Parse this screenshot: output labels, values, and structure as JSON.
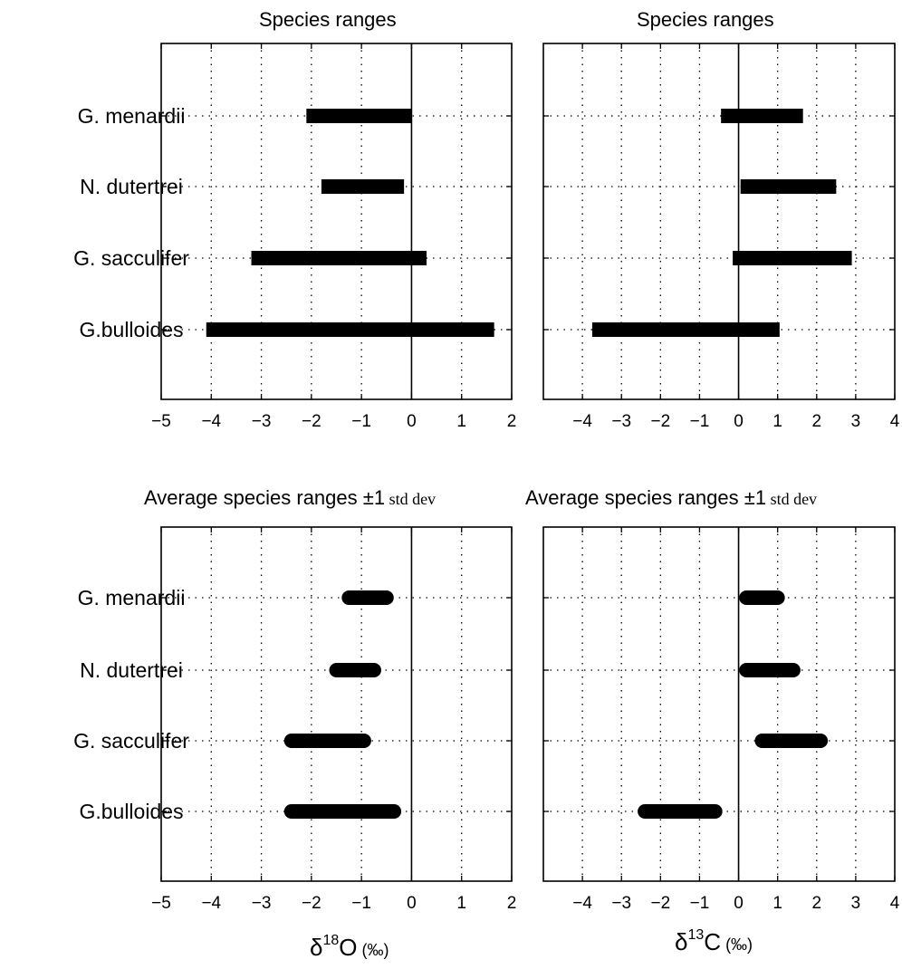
{
  "chart_data": [
    {
      "type": "bar",
      "title": "Species ranges",
      "categories": [
        "G. menardii",
        "N. dutertrei",
        "G. sacculifer",
        "G.bulloides"
      ],
      "ranges": [
        [
          -2.1,
          0.0
        ],
        [
          -1.8,
          -0.15
        ],
        [
          -3.2,
          0.3
        ],
        [
          -4.1,
          1.65
        ]
      ],
      "xlim": [
        -5,
        2
      ],
      "xticks": [
        -5,
        -4,
        -3,
        -2,
        -1,
        0,
        1,
        2
      ],
      "xticklabels": [
        "−5",
        "−4",
        "−3",
        "−2",
        "−1",
        "0",
        "1",
        "2"
      ],
      "grid": "dotted",
      "bar_style": "square"
    },
    {
      "type": "bar",
      "title": "Species ranges",
      "categories": [
        "G. menardii",
        "N. dutertrei",
        "G. sacculifer",
        "G.bulloides"
      ],
      "ranges": [
        [
          -0.45,
          1.65
        ],
        [
          0.05,
          2.5
        ],
        [
          -0.15,
          2.9
        ],
        [
          -3.75,
          1.05
        ]
      ],
      "xlim": [
        -5,
        4
      ],
      "xticks": [
        -4,
        -3,
        -2,
        -1,
        0,
        1,
        2,
        3,
        4
      ],
      "xticklabels": [
        "−4",
        "−3",
        "−2",
        "−1",
        "0",
        "1",
        "2",
        "3",
        "4"
      ],
      "grid": "dotted",
      "bar_style": "square"
    },
    {
      "type": "bar",
      "title_main": "Average species ranges ",
      "title_pm": "±1",
      "title_std": " std dev",
      "categories": [
        "G. menardii",
        "N. dutertrei",
        "G. sacculifer",
        "G.bulloides"
      ],
      "ranges": [
        [
          -1.25,
          -0.5
        ],
        [
          -1.5,
          -0.75
        ],
        [
          -2.4,
          -0.95
        ],
        [
          -2.4,
          -0.35
        ]
      ],
      "xlim": [
        -5,
        2
      ],
      "xticks": [
        -5,
        -4,
        -3,
        -2,
        -1,
        0,
        1,
        2
      ],
      "xticklabels": [
        "−5",
        "−4",
        "−3",
        "−2",
        "−1",
        "0",
        "1",
        "2"
      ],
      "xlabel": {
        "prefix": "δ",
        "sup": "18",
        "element": "O",
        "unit": " (‰)"
      },
      "grid": "dotted",
      "bar_style": "rounded"
    },
    {
      "type": "bar",
      "title_main": "Average species ranges ",
      "title_pm": "±1",
      "title_std": " std dev",
      "categories": [
        "G. menardii",
        "N. dutertrei",
        "G. sacculifer",
        "G.bulloides"
      ],
      "ranges": [
        [
          0.2,
          1.0
        ],
        [
          0.2,
          1.4
        ],
        [
          0.6,
          2.1
        ],
        [
          -2.4,
          -0.6
        ]
      ],
      "xlim": [
        -5,
        4
      ],
      "xticks": [
        -4,
        -3,
        -2,
        -1,
        0,
        1,
        2,
        3,
        4
      ],
      "xticklabels": [
        "−4",
        "−3",
        "−2",
        "−1",
        "0",
        "1",
        "2",
        "3",
        "4"
      ],
      "xlabel": {
        "prefix": "δ",
        "sup": "13",
        "element": "C",
        "unit": " (‰)"
      },
      "grid": "dotted",
      "bar_style": "rounded"
    }
  ]
}
